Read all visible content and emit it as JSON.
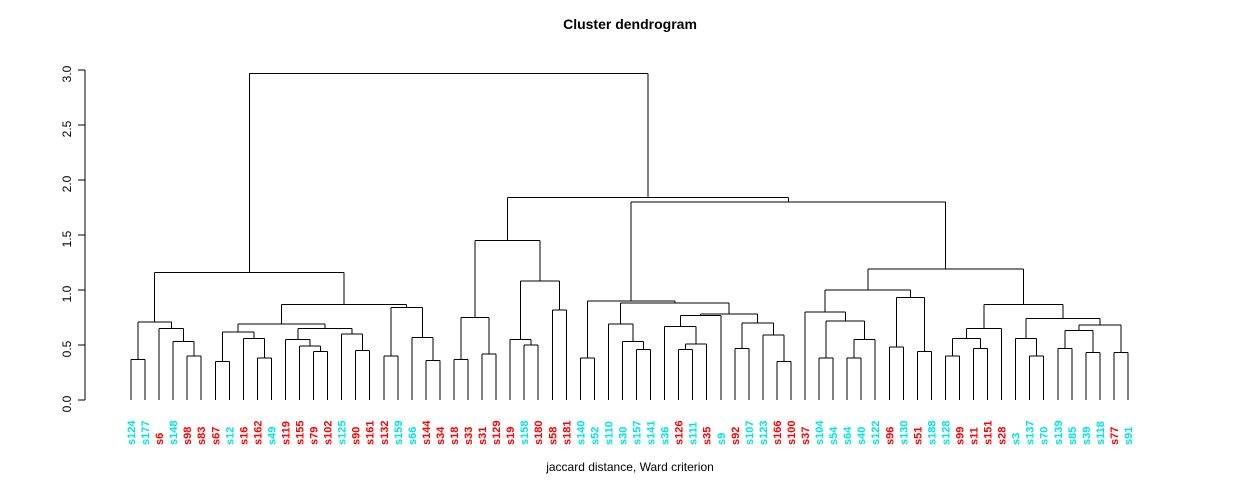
{
  "title": "Cluster dendrogram",
  "xlabel": "jaccard distance, Ward criterion",
  "palette": {
    "cyan": "#00E5E5",
    "red": "#FF0000",
    "line": "#000000"
  },
  "chart_data": {
    "type": "dendrogram",
    "title": "Cluster dendrogram",
    "xlabel": "jaccard distance, Ward criterion",
    "ylabel": "",
    "ylim": [
      0.0,
      3.0
    ],
    "yticks": [
      "0.0",
      "0.5",
      "1.0",
      "1.5",
      "2.0",
      "2.5",
      "3.0"
    ],
    "grid": false,
    "legend": "none",
    "root_height": 2.97,
    "leaves": [
      {
        "label": "s124",
        "color": "cyan"
      },
      {
        "label": "s177",
        "color": "cyan"
      },
      {
        "label": "s6",
        "color": "red"
      },
      {
        "label": "s148",
        "color": "cyan"
      },
      {
        "label": "s98",
        "color": "red"
      },
      {
        "label": "s83",
        "color": "red"
      },
      {
        "label": "s67",
        "color": "red"
      },
      {
        "label": "s12",
        "color": "cyan"
      },
      {
        "label": "s16",
        "color": "red"
      },
      {
        "label": "s162",
        "color": "red"
      },
      {
        "label": "s49",
        "color": "cyan"
      },
      {
        "label": "s119",
        "color": "red"
      },
      {
        "label": "s155",
        "color": "red"
      },
      {
        "label": "s79",
        "color": "red"
      },
      {
        "label": "s102",
        "color": "red"
      },
      {
        "label": "s125",
        "color": "cyan"
      },
      {
        "label": "s90",
        "color": "red"
      },
      {
        "label": "s161",
        "color": "red"
      },
      {
        "label": "s132",
        "color": "red"
      },
      {
        "label": "s159",
        "color": "cyan"
      },
      {
        "label": "s66",
        "color": "cyan"
      },
      {
        "label": "s144",
        "color": "red"
      },
      {
        "label": "s34",
        "color": "red"
      },
      {
        "label": "s18",
        "color": "red"
      },
      {
        "label": "s33",
        "color": "red"
      },
      {
        "label": "s31",
        "color": "red"
      },
      {
        "label": "s129",
        "color": "red"
      },
      {
        "label": "s19",
        "color": "red"
      },
      {
        "label": "s158",
        "color": "cyan"
      },
      {
        "label": "s180",
        "color": "red"
      },
      {
        "label": "s58",
        "color": "red"
      },
      {
        "label": "s181",
        "color": "red"
      },
      {
        "label": "s140",
        "color": "cyan"
      },
      {
        "label": "s52",
        "color": "cyan"
      },
      {
        "label": "s110",
        "color": "cyan"
      },
      {
        "label": "s30",
        "color": "cyan"
      },
      {
        "label": "s157",
        "color": "cyan"
      },
      {
        "label": "s141",
        "color": "cyan"
      },
      {
        "label": "s36",
        "color": "cyan"
      },
      {
        "label": "s126",
        "color": "red"
      },
      {
        "label": "s111",
        "color": "cyan"
      },
      {
        "label": "s35",
        "color": "red"
      },
      {
        "label": "s9",
        "color": "cyan"
      },
      {
        "label": "s92",
        "color": "red"
      },
      {
        "label": "s107",
        "color": "cyan"
      },
      {
        "label": "s123",
        "color": "cyan"
      },
      {
        "label": "s166",
        "color": "red"
      },
      {
        "label": "s100",
        "color": "red"
      },
      {
        "label": "s37",
        "color": "red"
      },
      {
        "label": "s104",
        "color": "cyan"
      },
      {
        "label": "s54",
        "color": "cyan"
      },
      {
        "label": "s64",
        "color": "cyan"
      },
      {
        "label": "s40",
        "color": "cyan"
      },
      {
        "label": "s122",
        "color": "cyan"
      },
      {
        "label": "s96",
        "color": "red"
      },
      {
        "label": "s130",
        "color": "cyan"
      },
      {
        "label": "s51",
        "color": "red"
      },
      {
        "label": "s188",
        "color": "cyan"
      },
      {
        "label": "s128",
        "color": "cyan"
      },
      {
        "label": "s99",
        "color": "red"
      },
      {
        "label": "s11",
        "color": "red"
      },
      {
        "label": "s151",
        "color": "red"
      },
      {
        "label": "s28",
        "color": "red"
      },
      {
        "label": "s3",
        "color": "cyan"
      },
      {
        "label": "s137",
        "color": "cyan"
      },
      {
        "label": "s70",
        "color": "cyan"
      },
      {
        "label": "s139",
        "color": "cyan"
      },
      {
        "label": "s85",
        "color": "cyan"
      },
      {
        "label": "s39",
        "color": "cyan"
      },
      {
        "label": "s118",
        "color": "cyan"
      },
      {
        "label": "s77",
        "color": "red"
      },
      {
        "label": "s91",
        "color": "cyan"
      }
    ],
    "tree": [
      2.97,
      [
        1.16,
        [
          0.71,
          [
            0.37,
            "s124",
            "s177"
          ],
          [
            0.65,
            "s6",
            [
              0.53,
              "s148",
              [
                0.4,
                "s98",
                "s83"
              ]
            ]
          ]
        ],
        [
          0.87,
          [
            0.69,
            [
              0.62,
              [
                0.35,
                "s67",
                "s12"
              ],
              [
                0.56,
                "s16",
                [
                  0.38,
                  "s162",
                  "s49"
                ]
              ]
            ],
            [
              0.65,
              [
                0.55,
                "s119",
                [
                  0.49,
                  "s155",
                  [
                    0.44,
                    "s79",
                    "s102"
                  ]
                ]
              ],
              [
                0.6,
                "s125",
                [
                  0.45,
                  "s90",
                  "s161"
                ]
              ]
            ]
          ],
          [
            0.84,
            [
              0.4,
              "s132",
              "s159"
            ],
            [
              0.57,
              "s66",
              [
                0.36,
                "s144",
                "s34"
              ]
            ]
          ]
        ]
      ],
      [
        1.84,
        [
          1.45,
          [
            0.75,
            [
              0.37,
              "s18",
              "s33"
            ],
            [
              0.42,
              "s31",
              "s129"
            ]
          ],
          [
            1.08,
            [
              0.55,
              "s19",
              [
                0.5,
                "s158",
                "s180"
              ]
            ],
            [
              0.82,
              "s58",
              "s181"
            ]
          ]
        ],
        [
          1.8,
          [
            0.9,
            [
              0.38,
              "s140",
              "s52"
            ],
            [
              0.88,
              [
                0.69,
                "s110",
                [
                  0.53,
                  "s30",
                  [
                    0.46,
                    "s157",
                    "s141"
                  ]
                ]
              ],
              [
                0.78,
                [
                  0.77,
                  [
                    0.67,
                    "s36",
                    [
                      0.51,
                      [
                        0.46,
                        "s126",
                        "s111"
                      ],
                      "s35"
                    ]
                  ],
                  "s9"
                ],
                [
                  0.7,
                  [
                    0.47,
                    "s92",
                    "s107"
                  ],
                  [
                    0.59,
                    "s123",
                    [
                      0.35,
                      "s166",
                      "s100"
                    ]
                  ]
                ]
              ]
            ]
          ],
          [
            1.19,
            [
              1.0,
              [
                0.8,
                "s37",
                [
                  0.72,
                  [
                    0.38,
                    "s104",
                    "s54"
                  ],
                  [
                    0.55,
                    [
                      0.38,
                      "s64",
                      "s40"
                    ],
                    "s122"
                  ]
                ]
              ],
              [
                0.93,
                [
                  0.48,
                  "s96",
                  "s130"
                ],
                [
                  0.44,
                  "s51",
                  "s188"
                ]
              ]
            ],
            [
              0.87,
              [
                0.65,
                [
                  0.56,
                  [
                    0.4,
                    "s128",
                    "s99"
                  ],
                  [
                    0.47,
                    "s11",
                    "s151"
                  ]
                ],
                "s28"
              ],
              [
                0.74,
                [
                  0.56,
                  "s3",
                  [
                    0.4,
                    "s137",
                    "s70"
                  ]
                ],
                [
                  0.68,
                  [
                    0.63,
                    [
                      0.47,
                      "s139",
                      "s85"
                    ],
                    [
                      0.43,
                      "s39",
                      "s118"
                    ]
                  ],
                  [
                    0.43,
                    "s77",
                    "s91"
                  ]
                ]
              ]
            ]
          ]
        ]
      ]
    ]
  }
}
